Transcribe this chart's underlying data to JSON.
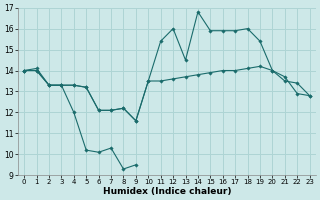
{
  "xlabel": "Humidex (Indice chaleur)",
  "xlim": [
    -0.5,
    23.5
  ],
  "ylim": [
    9,
    17
  ],
  "yticks": [
    9,
    10,
    11,
    12,
    13,
    14,
    15,
    16,
    17
  ],
  "xticks": [
    0,
    1,
    2,
    3,
    4,
    5,
    6,
    7,
    8,
    9,
    10,
    11,
    12,
    13,
    14,
    15,
    16,
    17,
    18,
    19,
    20,
    21,
    22,
    23
  ],
  "bg_color": "#cde8e8",
  "grid_color": "#aed4d4",
  "line_color": "#1a6b6b",
  "line1": {
    "x": [
      0,
      1,
      2,
      3,
      4,
      5,
      6,
      7,
      8,
      9
    ],
    "y": [
      14.0,
      14.1,
      13.3,
      13.3,
      12.0,
      10.2,
      10.1,
      10.3,
      9.3,
      9.5
    ]
  },
  "line2": {
    "x": [
      0,
      1,
      2,
      3,
      4,
      5,
      6,
      7,
      8,
      9,
      10,
      11,
      12,
      13,
      14,
      15,
      16,
      17,
      18,
      19,
      20,
      21,
      22,
      23
    ],
    "y": [
      14.0,
      14.0,
      13.3,
      13.3,
      13.3,
      13.2,
      12.1,
      12.1,
      12.2,
      11.6,
      13.5,
      13.5,
      13.6,
      13.7,
      13.8,
      13.9,
      14.0,
      14.0,
      14.1,
      14.2,
      14.0,
      13.5,
      13.4,
      12.8
    ]
  },
  "line3": {
    "x": [
      0,
      1,
      2,
      3,
      4,
      5,
      6,
      7,
      8,
      9,
      10,
      11,
      12,
      13,
      14,
      15,
      16,
      17,
      18,
      19,
      20,
      21,
      22,
      23
    ],
    "y": [
      14.0,
      14.0,
      13.3,
      13.3,
      13.3,
      13.2,
      12.1,
      12.1,
      12.2,
      11.6,
      13.5,
      15.4,
      16.0,
      14.5,
      16.8,
      15.9,
      15.9,
      15.9,
      16.0,
      15.4,
      14.0,
      13.7,
      12.9,
      12.8
    ]
  }
}
